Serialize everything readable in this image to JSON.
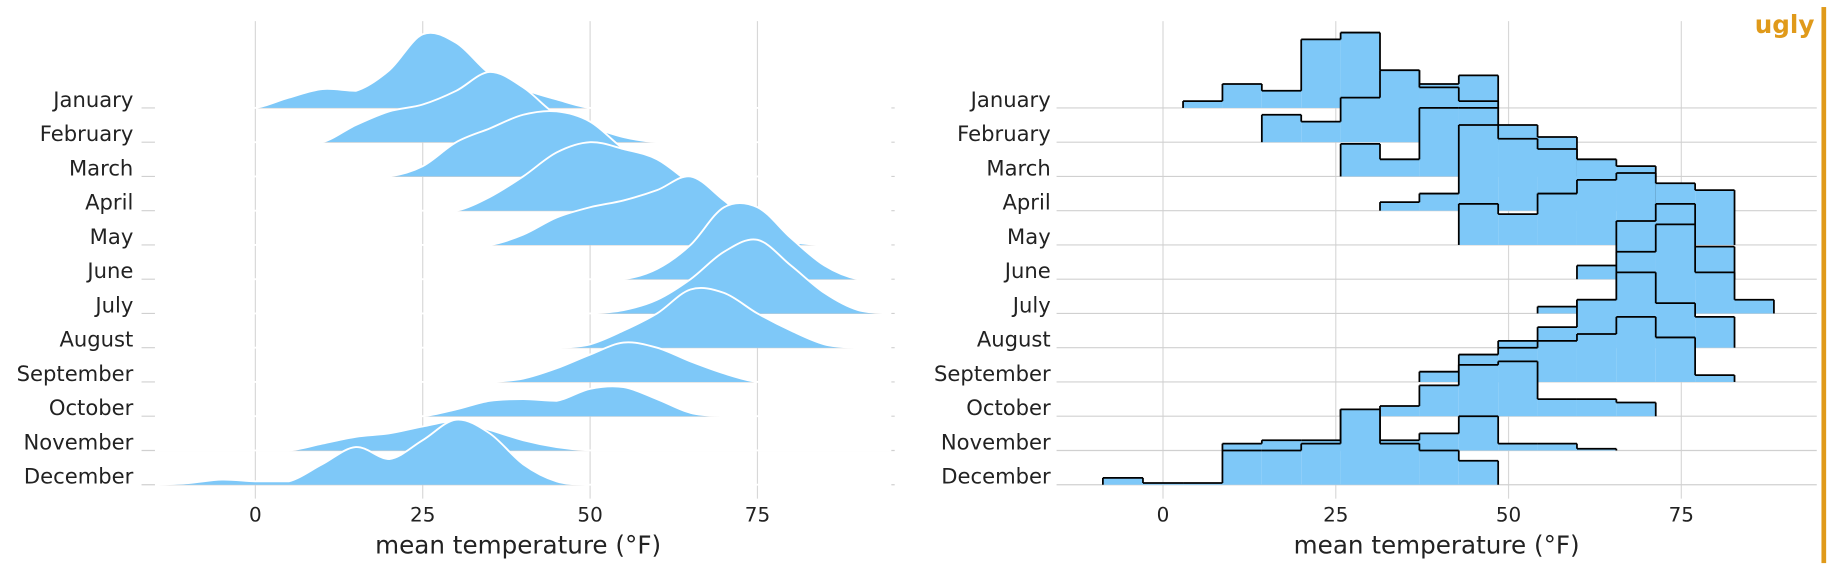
{
  "label": {
    "text": "ugly",
    "color": "#e09a1a"
  },
  "chart_data": [
    {
      "type": "ridgeline",
      "xlabel": "mean temperature (°F)",
      "color": "#7ec8f8",
      "outline": "#ffffff",
      "categories": [
        "January",
        "February",
        "March",
        "April",
        "May",
        "June",
        "July",
        "August",
        "September",
        "October",
        "November",
        "December"
      ],
      "x": [
        -15,
        -10,
        -5,
        0,
        5,
        10,
        15,
        20,
        25,
        30,
        35,
        40,
        45,
        50,
        55,
        60,
        65,
        70,
        75,
        80,
        85,
        90,
        95
      ],
      "values": [
        [
          0,
          0,
          0,
          0,
          0.3,
          0.55,
          0.5,
          1.1,
          2.15,
          1.9,
          1.0,
          0.55,
          0.25,
          0,
          0,
          0,
          0,
          0,
          0,
          0,
          0,
          0,
          0
        ],
        [
          0,
          0,
          0,
          0,
          0,
          0,
          0.5,
          0.9,
          1.1,
          1.5,
          2.05,
          1.6,
          0.8,
          0.45,
          0.15,
          0,
          0,
          0,
          0,
          0,
          0,
          0,
          0
        ],
        [
          0,
          0,
          0,
          0,
          0,
          0,
          0,
          0,
          0.3,
          1.0,
          1.4,
          1.8,
          1.9,
          1.6,
          0.8,
          0.2,
          0,
          0,
          0,
          0,
          0,
          0,
          0
        ],
        [
          0,
          0,
          0,
          0,
          0,
          0,
          0,
          0,
          0,
          0,
          0.4,
          1.0,
          1.7,
          2.0,
          1.8,
          1.5,
          0.8,
          0.2,
          0,
          0,
          0,
          0,
          0
        ],
        [
          0,
          0,
          0,
          0,
          0,
          0,
          0,
          0,
          0,
          0,
          0,
          0.3,
          0.8,
          1.1,
          1.3,
          1.6,
          2.0,
          1.3,
          0.5,
          0.1,
          0,
          0,
          0
        ],
        [
          0,
          0,
          0,
          0,
          0,
          0,
          0,
          0,
          0,
          0,
          0,
          0,
          0,
          0,
          0,
          0.3,
          1.0,
          2.1,
          2.1,
          1.2,
          0.4,
          0,
          0
        ],
        [
          0,
          0,
          0,
          0,
          0,
          0,
          0,
          0,
          0,
          0,
          0,
          0,
          0,
          0,
          0.1,
          0.4,
          1.0,
          1.8,
          2.15,
          1.4,
          0.6,
          0.1,
          0
        ],
        [
          0,
          0,
          0,
          0,
          0,
          0,
          0,
          0,
          0,
          0,
          0,
          0,
          0,
          0.1,
          0.5,
          1.0,
          1.7,
          1.6,
          1.0,
          0.5,
          0.1,
          0,
          0
        ],
        [
          0,
          0,
          0,
          0,
          0,
          0,
          0,
          0,
          0,
          0,
          0,
          0.1,
          0.4,
          0.8,
          1.15,
          1.0,
          0.6,
          0.25,
          0,
          0,
          0,
          0,
          0
        ],
        [
          0,
          0,
          0,
          0,
          0,
          0,
          0,
          0,
          0,
          0.2,
          0.45,
          0.5,
          0.45,
          0.8,
          0.85,
          0.5,
          0.1,
          0,
          0,
          0,
          0,
          0,
          0
        ],
        [
          0,
          0,
          0,
          0,
          0,
          0.2,
          0.4,
          0.5,
          0.7,
          0.85,
          0.6,
          0.3,
          0.1,
          0,
          0,
          0,
          0,
          0,
          0,
          0,
          0,
          0,
          0
        ],
        [
          0,
          0.05,
          0.15,
          0.1,
          0.1,
          0.6,
          1.1,
          0.75,
          1.3,
          1.9,
          1.5,
          0.6,
          0.1,
          0,
          0,
          0,
          0,
          0,
          0,
          0,
          0,
          0,
          0
        ]
      ],
      "xlim": [
        -17,
        95.5
      ],
      "xticks": [
        0,
        25,
        50,
        75
      ],
      "grid": true
    },
    {
      "type": "ridgeline-histogram",
      "xlabel": "mean temperature (°F)",
      "color": "#7ec8f8",
      "outline": "#000000",
      "categories": [
        "January",
        "February",
        "March",
        "April",
        "May",
        "June",
        "July",
        "August",
        "September",
        "October",
        "November",
        "December"
      ],
      "bins": [
        -8.7,
        -2.9,
        2.9,
        8.6,
        14.3,
        20,
        25.7,
        31.4,
        37.1,
        42.8,
        48.5,
        54.2,
        59.9,
        65.6,
        71.3,
        77,
        82.7,
        88.4
      ],
      "values": [
        [
          0,
          0,
          0.2,
          0.7,
          0.5,
          2.0,
          2.2,
          1.1,
          0.7,
          0.95,
          0,
          0,
          0,
          0,
          0,
          0,
          0
        ],
        [
          0,
          0,
          0,
          0,
          0.8,
          0.6,
          1.3,
          2.1,
          1.6,
          1.2,
          0,
          0,
          0,
          0,
          0,
          0,
          0
        ],
        [
          0,
          0,
          0,
          0,
          0,
          0,
          0.95,
          0.5,
          2.0,
          2.0,
          1.5,
          1.15,
          0,
          0,
          0,
          0,
          0
        ],
        [
          0,
          0,
          0,
          0,
          0,
          0,
          0,
          0.25,
          0.5,
          2.5,
          2.1,
          1.8,
          1.5,
          1.3,
          0,
          0,
          0
        ],
        [
          0,
          0,
          0,
          0,
          0,
          0,
          0,
          0,
          0,
          1.2,
          0.9,
          1.5,
          1.9,
          2.1,
          1.8,
          1.6,
          0
        ],
        [
          0,
          0,
          0,
          0,
          0,
          0,
          0,
          0,
          0,
          0,
          0,
          0,
          0.4,
          1.7,
          2.2,
          0.95,
          0
        ],
        [
          0,
          0,
          0,
          0,
          0,
          0,
          0,
          0,
          0,
          0,
          0,
          0.2,
          0.4,
          1.8,
          2.6,
          1.2,
          0.4
        ],
        [
          0,
          0,
          0,
          0,
          0,
          0,
          0,
          0,
          0,
          0,
          0.2,
          0.6,
          1.4,
          2.2,
          1.3,
          0.9,
          0
        ],
        [
          0,
          0,
          0,
          0,
          0,
          0,
          0,
          0,
          0.3,
          0.8,
          1.0,
          1.2,
          1.4,
          1.9,
          1.3,
          0.2,
          0
        ],
        [
          0,
          0,
          0,
          0,
          0,
          0,
          0.2,
          0.3,
          0.9,
          1.5,
          1.6,
          0.5,
          0.5,
          0.4,
          0,
          0,
          0
        ],
        [
          0,
          0,
          0,
          0.2,
          0.3,
          0.3,
          1.2,
          0.3,
          0.5,
          1.0,
          0.2,
          0.2,
          0.05,
          0,
          0,
          0,
          0
        ],
        [
          0.2,
          0.05,
          0.05,
          1.0,
          1.0,
          1.2,
          2.2,
          1.2,
          1.0,
          0.7,
          0,
          0,
          0,
          0,
          0,
          0,
          0
        ]
      ],
      "xlim": [
        -15.4,
        94.6
      ],
      "xticks": [
        0,
        25,
        50,
        75
      ],
      "grid": true
    }
  ]
}
